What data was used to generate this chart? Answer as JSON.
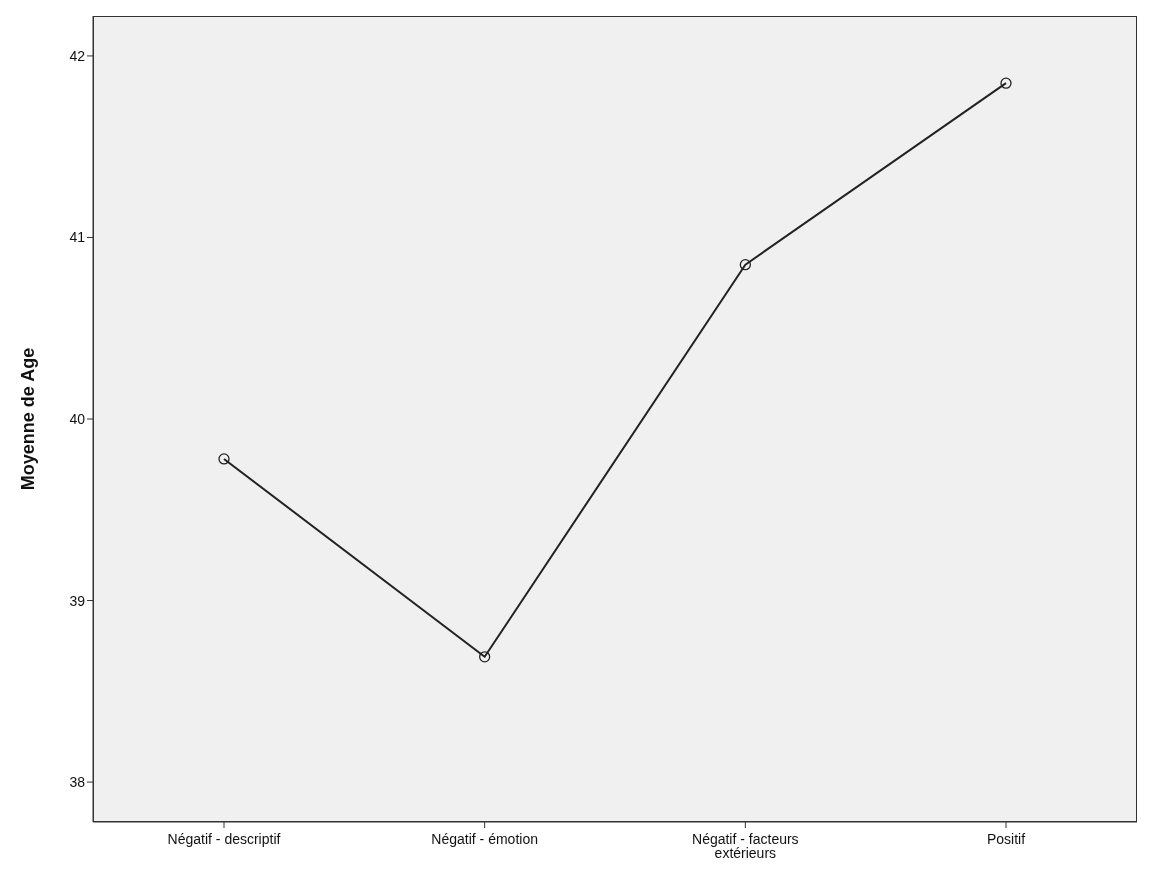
{
  "chart_data": {
    "type": "line",
    "ylabel": "Moyenne de Age",
    "categories": [
      "Négatif - descriptif",
      "Négatif - émotion",
      "Négatif - facteurs extérieurs",
      "Positif"
    ],
    "series": [
      {
        "color": "#222222",
        "values": [
          39.78,
          38.69,
          40.85,
          41.85
        ]
      }
    ],
    "ylim": [
      37.78,
      42.22
    ],
    "yticks": [
      38,
      39,
      40,
      41,
      42
    ],
    "grid": false,
    "legend": false,
    "marker": "circle",
    "line_style": "solid"
  }
}
